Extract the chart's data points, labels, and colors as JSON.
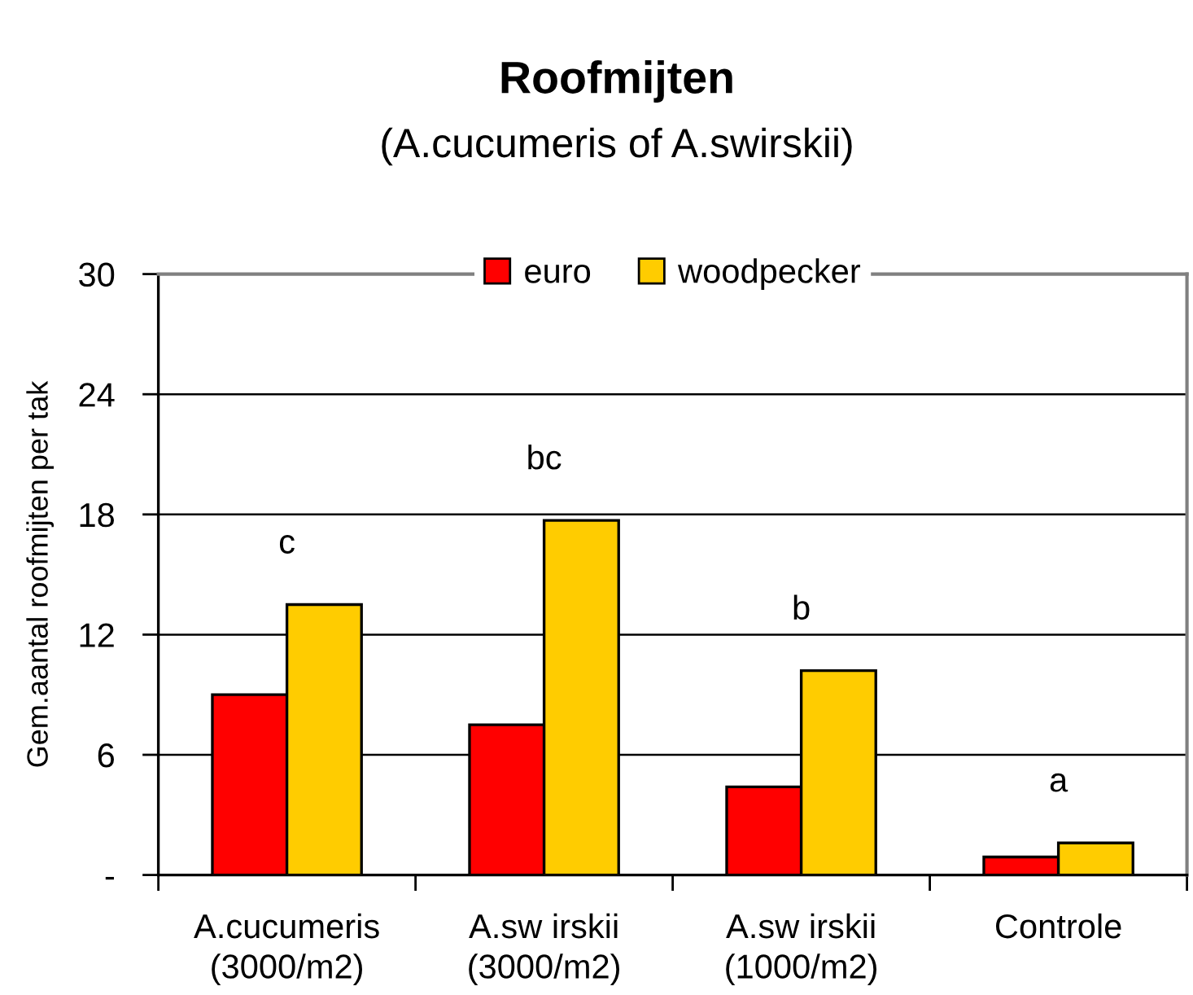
{
  "chart_data": {
    "type": "bar",
    "title": "Roofmijten",
    "subtitle": "(A.cucumeris of A.swirskii)",
    "ylabel": "Gem.aantal roofmijten per tak",
    "categories": [
      "A.cucumeris\n(3000/m2)",
      "A.sw irskii\n(3000/m2)",
      "A.sw irskii\n(1000/m2)",
      "Controle"
    ],
    "series": [
      {
        "name": "euro",
        "color": "#ff0000",
        "values": [
          9.0,
          7.5,
          4.4,
          0.9
        ]
      },
      {
        "name": "woodpecker",
        "color": "#ffcc00",
        "values": [
          13.5,
          17.7,
          10.2,
          1.6
        ]
      }
    ],
    "ylim": [
      0,
      30
    ],
    "yticks": [
      {
        "value": 0,
        "label": "-"
      },
      6,
      12,
      18,
      24,
      30
    ],
    "grid": "y",
    "legend": "top",
    "annotations": [
      "c",
      "bc",
      "b",
      "a"
    ]
  }
}
